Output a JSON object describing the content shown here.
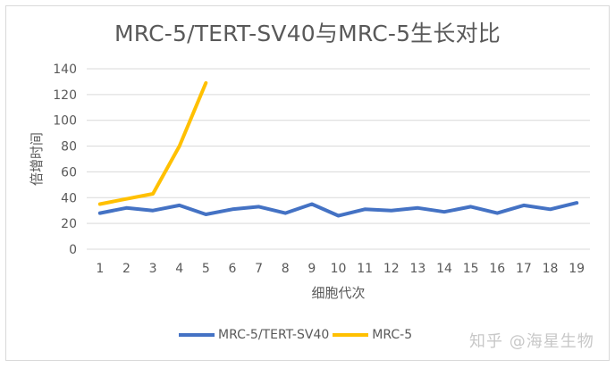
{
  "chart_data": {
    "type": "line",
    "title": "MRC-5/TERT-SV40与MRC-5生长对比",
    "xlabel": "细胞代次",
    "ylabel": "倍增时间",
    "categories": [
      "1",
      "2",
      "3",
      "4",
      "5",
      "6",
      "7",
      "8",
      "9",
      "10",
      "11",
      "12",
      "13",
      "14",
      "15",
      "16",
      "17",
      "18",
      "19"
    ],
    "ylim": [
      0,
      140
    ],
    "yticks": [
      0,
      20,
      40,
      60,
      80,
      100,
      120,
      140
    ],
    "grid": true,
    "legend_position": "bottom",
    "series": [
      {
        "name": "MRC-5/TERT-SV40",
        "color": "#4472C4",
        "values": [
          28,
          32,
          30,
          34,
          27,
          31,
          33,
          28,
          35,
          26,
          31,
          30,
          32,
          29,
          33,
          28,
          34,
          31,
          36
        ]
      },
      {
        "name": "MRC-5",
        "color": "#FFC000",
        "values": [
          35,
          39,
          43,
          80,
          129
        ]
      }
    ]
  },
  "watermark": "知乎 @海星生物"
}
